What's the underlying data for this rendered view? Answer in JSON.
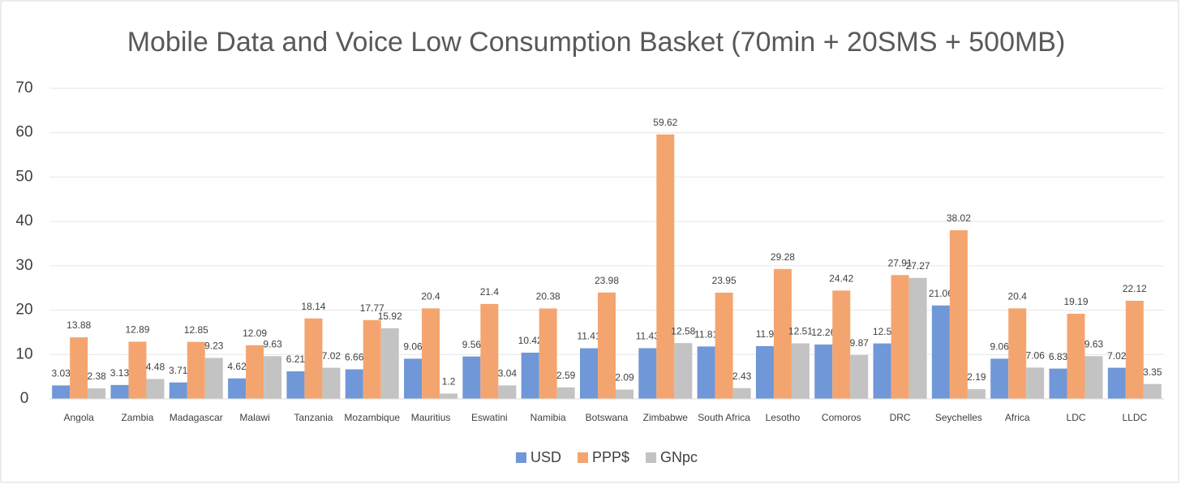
{
  "chart_data": {
    "type": "bar",
    "title": "Mobile Data and Voice Low Consumption Basket (70min + 20SMS + 500MB)",
    "categories": [
      "Angola",
      "Zambia",
      "Madagascar",
      "Malawi",
      "Tanzania",
      "Mozambique",
      "Mauritius",
      "Eswatini",
      "Namibia",
      "Botswana",
      "Zimbabwe",
      "South Africa",
      "Lesotho",
      "Comoros",
      "DRC",
      "Seychelles",
      "Africa",
      "LDC",
      "LLDC"
    ],
    "series": [
      {
        "name": "USD",
        "color": "#7097d7",
        "values": [
          3.03,
          3.13,
          3.71,
          4.62,
          6.21,
          6.66,
          9.06,
          9.56,
          10.42,
          11.41,
          11.43,
          11.81,
          11.9,
          12.26,
          12.5,
          21.06,
          9.06,
          6.83,
          7.02
        ]
      },
      {
        "name": "PPP$",
        "color": "#f4a56f",
        "values": [
          13.88,
          12.89,
          12.85,
          12.09,
          18.14,
          17.77,
          20.4,
          21.4,
          20.38,
          23.98,
          59.62,
          23.95,
          29.28,
          24.42,
          27.91,
          38.02,
          20.4,
          19.19,
          22.12
        ]
      },
      {
        "name": "GNpc",
        "color": "#c3c3c3",
        "values": [
          2.38,
          4.48,
          9.23,
          9.63,
          7.02,
          15.92,
          1.2,
          3.04,
          2.59,
          2.09,
          12.58,
          2.43,
          12.51,
          9.87,
          27.27,
          2.19,
          7.06,
          9.63,
          3.35
        ]
      }
    ],
    "ylim": [
      0,
      70
    ],
    "yticks": [
      0,
      10,
      20,
      30,
      40,
      50,
      60,
      70
    ],
    "grid": true,
    "legend": "bottom"
  }
}
